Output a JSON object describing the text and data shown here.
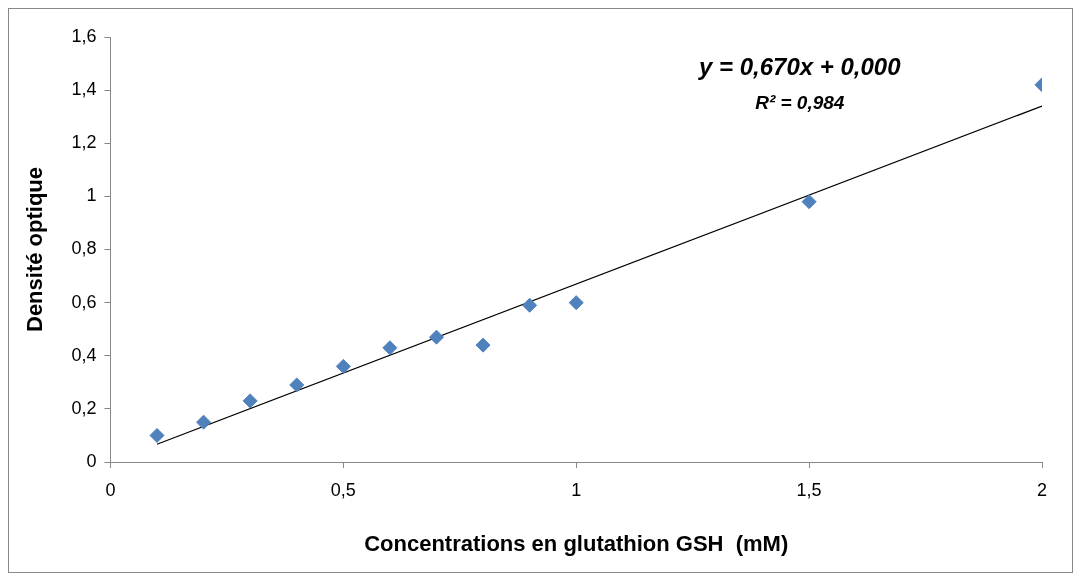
{
  "chart_data": {
    "type": "scatter",
    "xlabel": "Concentrations en glutathion GSH  (mM)",
    "ylabel": "Densité optique",
    "annotations": [
      "y = 0,670x + 0,000",
      "R² = 0,984"
    ],
    "x": [
      0.1,
      0.2,
      0.3,
      0.4,
      0.5,
      0.6,
      0.7,
      0.8,
      0.9,
      1.0,
      1.5,
      2.0
    ],
    "series": [
      {
        "color": "#4f81bd",
        "marker": "diamond",
        "values": [
          0.1,
          0.15,
          0.23,
          0.29,
          0.36,
          0.43,
          0.47,
          0.44,
          0.59,
          0.6,
          0.98,
          1.42
        ]
      },
      {
        "type": "line",
        "color": "#000000",
        "marker": "none",
        "x": [
          0.1,
          2.0
        ],
        "values": [
          0.067,
          1.34
        ]
      }
    ],
    "xlim": [
      0,
      2
    ],
    "xticks": [
      0,
      {
        "value": 0.5,
        "label": "0,5"
      },
      1,
      {
        "value": 1.5,
        "label": "1,5"
      },
      2
    ],
    "ylim": [
      0,
      1.6
    ],
    "yticks": [
      0,
      {
        "value": 0.2,
        "label": "0,2"
      },
      {
        "value": 0.4,
        "label": "0,4"
      },
      {
        "value": 0.6,
        "label": "0,6"
      },
      {
        "value": 0.8,
        "label": "0,8"
      },
      1,
      {
        "value": 1.2,
        "label": "1,2"
      },
      {
        "value": 1.4,
        "label": "1,4"
      },
      {
        "value": 1.6,
        "label": "1,6"
      }
    ],
    "grid": false,
    "legend": false
  }
}
